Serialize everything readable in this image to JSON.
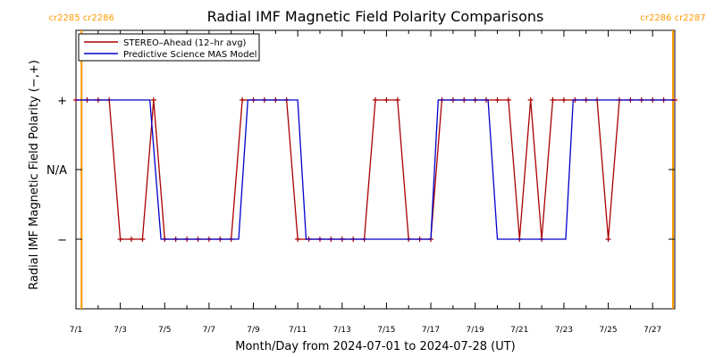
{
  "chart_data": {
    "type": "line",
    "title": "Radial IMF Magnetic Field Polarity Comparisons",
    "xlabel": "Month/Day from 2024-07-01 to 2024-07-28 (UT)",
    "ylabel": "Radial IMF Magnetic Field Polarity (−,+)",
    "x_range": [
      "2024-07-01",
      "2024-07-28"
    ],
    "y_range": [
      -1,
      1
    ],
    "x_ticks": [
      "7/1",
      "7/3",
      "7/5",
      "7/7",
      "7/9",
      "7/11",
      "7/13",
      "7/15",
      "7/17",
      "7/19",
      "7/21",
      "7/23",
      "7/25",
      "7/27"
    ],
    "y_ticks": [
      {
        "value": 0.5,
        "label": "+"
      },
      {
        "value": 0,
        "label": "N/A"
      },
      {
        "value": -0.5,
        "label": "−"
      }
    ],
    "rotation_markers": [
      {
        "date": "2024-07-01T06:00",
        "labels": [
          "cr2285",
          "cr2286"
        ]
      },
      {
        "date": "2024-07-28T00:00",
        "labels": [
          "cr2286",
          "cr2287"
        ]
      }
    ],
    "legend_position": "top-left",
    "series": [
      {
        "name": "STEREO–Ahead (12–hr avg)",
        "color": "#aa0000",
        "points": [
          [
            "2024-07-01T00:00",
            0.5
          ],
          [
            "2024-07-01T12:00",
            0.5
          ],
          [
            "2024-07-02T00:00",
            0.5
          ],
          [
            "2024-07-02T12:00",
            0.5
          ],
          [
            "2024-07-03T00:00",
            -0.5
          ],
          [
            "2024-07-03T12:00",
            -0.5
          ],
          [
            "2024-07-04T00:00",
            -0.5
          ],
          [
            "2024-07-04T12:00",
            0.5
          ],
          [
            "2024-07-05T00:00",
            -0.5
          ],
          [
            "2024-07-05T12:00",
            -0.5
          ],
          [
            "2024-07-06T00:00",
            -0.5
          ],
          [
            "2024-07-06T12:00",
            -0.5
          ],
          [
            "2024-07-07T00:00",
            -0.5
          ],
          [
            "2024-07-07T12:00",
            -0.5
          ],
          [
            "2024-07-08T00:00",
            -0.5
          ],
          [
            "2024-07-08T12:00",
            0.5
          ],
          [
            "2024-07-09T00:00",
            0.5
          ],
          [
            "2024-07-09T12:00",
            0.5
          ],
          [
            "2024-07-10T00:00",
            0.5
          ],
          [
            "2024-07-10T12:00",
            0.5
          ],
          [
            "2024-07-11T00:00",
            -0.5
          ],
          [
            "2024-07-11T12:00",
            -0.5
          ],
          [
            "2024-07-12T00:00",
            -0.5
          ],
          [
            "2024-07-12T12:00",
            -0.5
          ],
          [
            "2024-07-13T00:00",
            -0.5
          ],
          [
            "2024-07-13T12:00",
            -0.5
          ],
          [
            "2024-07-14T00:00",
            -0.5
          ],
          [
            "2024-07-14T12:00",
            0.5
          ],
          [
            "2024-07-15T00:00",
            0.5
          ],
          [
            "2024-07-15T12:00",
            0.5
          ],
          [
            "2024-07-16T00:00",
            -0.5
          ],
          [
            "2024-07-16T12:00",
            -0.5
          ],
          [
            "2024-07-17T00:00",
            -0.5
          ],
          [
            "2024-07-17T12:00",
            0.5
          ],
          [
            "2024-07-18T00:00",
            0.5
          ],
          [
            "2024-07-18T12:00",
            0.5
          ],
          [
            "2024-07-19T00:00",
            0.5
          ],
          [
            "2024-07-19T12:00",
            0.5
          ],
          [
            "2024-07-20T00:00",
            0.5
          ],
          [
            "2024-07-20T12:00",
            0.5
          ],
          [
            "2024-07-21T00:00",
            -0.5
          ],
          [
            "2024-07-21T12:00",
            0.5
          ],
          [
            "2024-07-22T00:00",
            -0.5
          ],
          [
            "2024-07-22T12:00",
            0.5
          ],
          [
            "2024-07-23T00:00",
            0.5
          ],
          [
            "2024-07-23T12:00",
            0.5
          ],
          [
            "2024-07-24T00:00",
            0.5
          ],
          [
            "2024-07-24T12:00",
            0.5
          ],
          [
            "2024-07-25T00:00",
            -0.5
          ],
          [
            "2024-07-25T12:00",
            0.5
          ],
          [
            "2024-07-26T00:00",
            0.5
          ],
          [
            "2024-07-26T12:00",
            0.5
          ],
          [
            "2024-07-27T00:00",
            0.5
          ],
          [
            "2024-07-27T12:00",
            0.5
          ],
          [
            "2024-07-28T00:00",
            0.5
          ]
        ]
      },
      {
        "name": "Predictive Science MAS Model",
        "color": "#0000cc",
        "points": [
          [
            "2024-07-01T00:00",
            0.5
          ],
          [
            "2024-07-04T08:00",
            0.5
          ],
          [
            "2024-07-04T20:00",
            -0.5
          ],
          [
            "2024-07-08T08:00",
            -0.5
          ],
          [
            "2024-07-08T18:00",
            0.5
          ],
          [
            "2024-07-11T00:00",
            0.5
          ],
          [
            "2024-07-11T09:00",
            -0.5
          ],
          [
            "2024-07-17T00:00",
            -0.5
          ],
          [
            "2024-07-17T08:00",
            0.5
          ],
          [
            "2024-07-19T14:00",
            0.5
          ],
          [
            "2024-07-20T00:00",
            -0.5
          ],
          [
            "2024-07-23T02:00",
            -0.5
          ],
          [
            "2024-07-23T10:00",
            0.5
          ],
          [
            "2024-07-28T00:00",
            0.5
          ]
        ]
      }
    ]
  }
}
